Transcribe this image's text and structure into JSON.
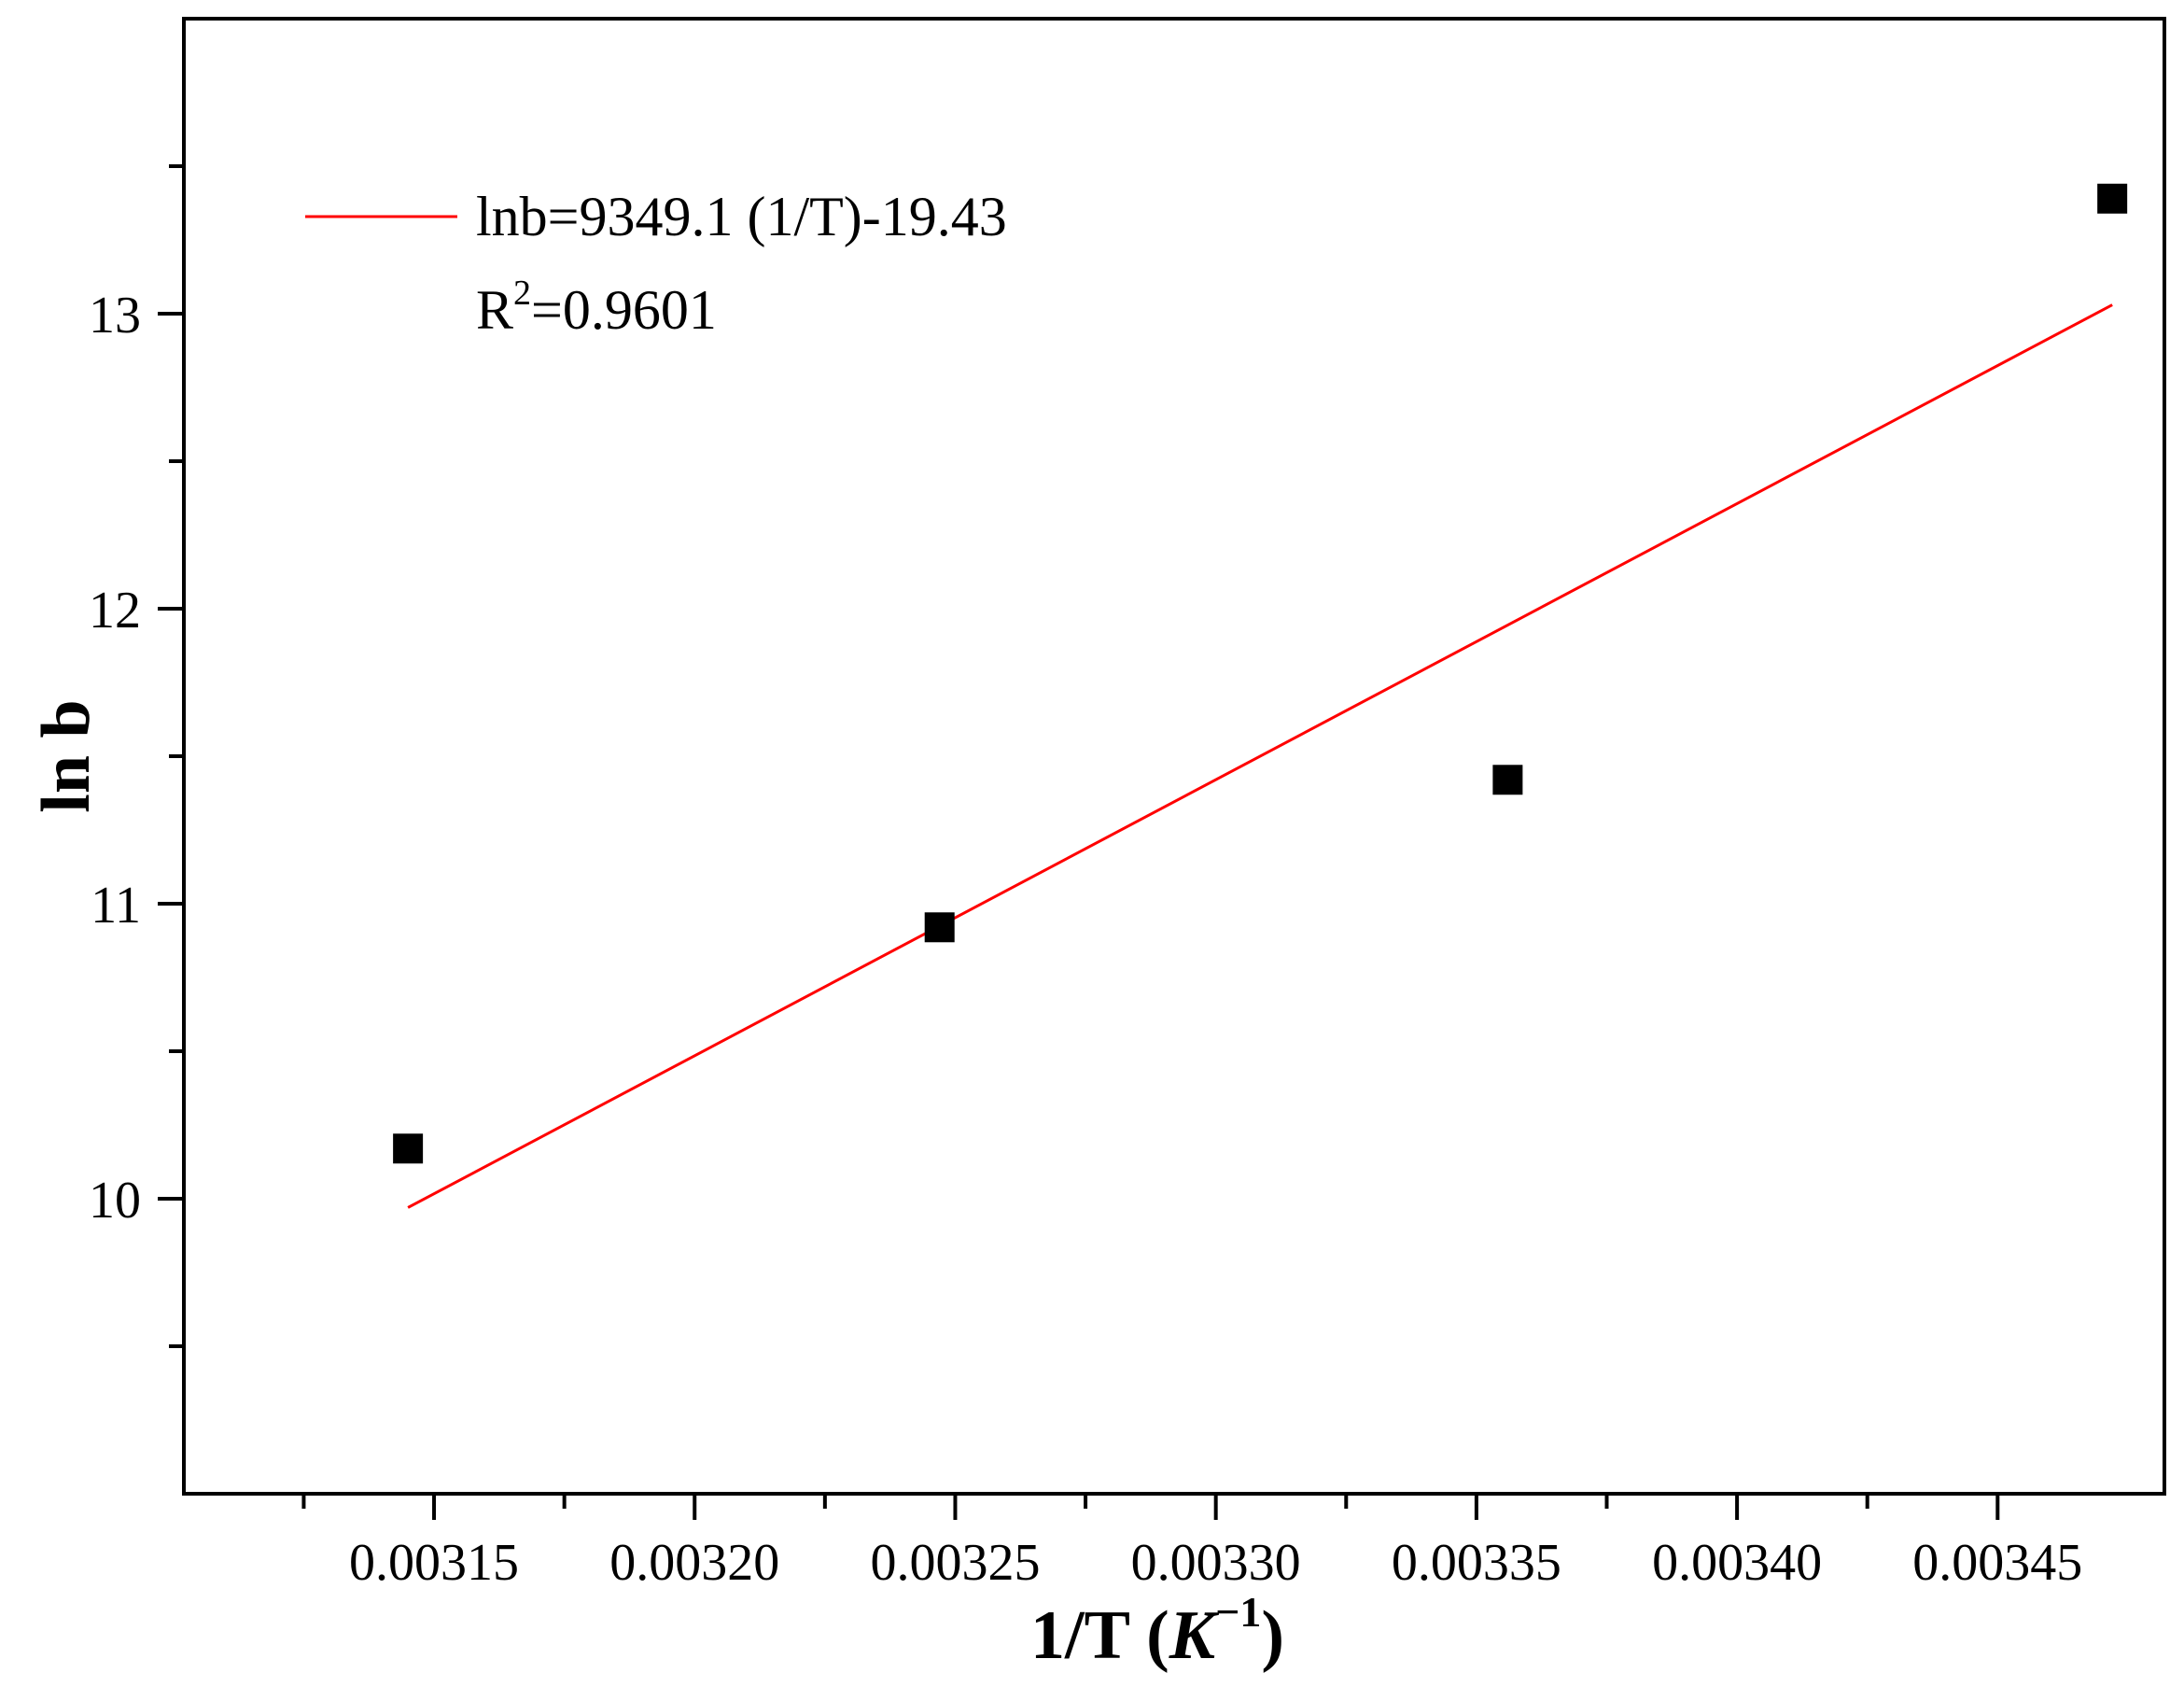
{
  "chart_data": {
    "type": "scatter",
    "xlabel": "1/T (K−1)",
    "xlabel_parts": {
      "main": "1/T (",
      "unit": "K",
      "exponent": "−1",
      "close": ")"
    },
    "ylabel": "ln b",
    "xlim": [
      0.003102,
      0.003482
    ],
    "ylim": [
      9.0,
      14.0
    ],
    "x_ticks": [
      0.00315,
      0.0032,
      0.00325,
      0.0033,
      0.00335,
      0.0034,
      0.00345
    ],
    "x_tick_labels": [
      "0.00315",
      "0.00320",
      "0.00325",
      "0.00330",
      "0.00335",
      "0.00340",
      "0.00345"
    ],
    "x_minor_ticks": [
      0.003125,
      0.003175,
      0.003225,
      0.003275,
      0.003325,
      0.003375,
      0.003425
    ],
    "y_ticks": [
      10,
      11,
      12,
      13
    ],
    "y_tick_labels": [
      "10",
      "11",
      "12",
      "13"
    ],
    "y_minor_ticks": [
      9.5,
      10.5,
      11.5,
      12.5,
      13.5
    ],
    "grid": false,
    "series": [
      {
        "kind": "points",
        "marker": "square",
        "color": "#000000",
        "x": [
          0.003145,
          0.003247,
          0.003356,
          0.003472
        ],
        "y": [
          10.17,
          10.92,
          11.42,
          13.39
        ]
      },
      {
        "kind": "fit-line",
        "color": "#ff0000",
        "x": [
          0.003145,
          0.003472
        ],
        "y": [
          9.97,
          13.03
        ]
      }
    ],
    "legend": {
      "placement": "top-left",
      "equation": "lnb=9349.1 (1/T)-19.43",
      "r2_prefix": "R",
      "r2_exponent": "2",
      "r2_value": "=0.9601"
    }
  }
}
